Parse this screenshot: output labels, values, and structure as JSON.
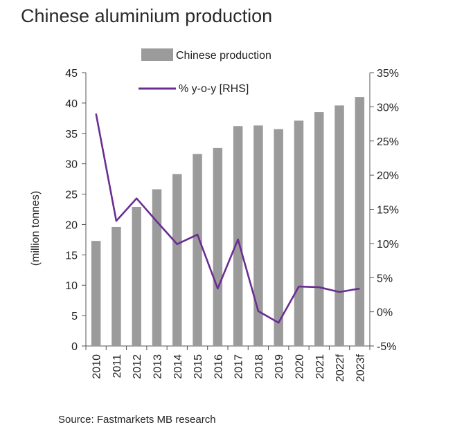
{
  "chart_data": {
    "type": "bar",
    "title": "Chinese aluminium production",
    "ylabel": "(million tonnes)",
    "ylabel_right": "",
    "source": "Source: Fastmarkets MB research",
    "categories": [
      "2010",
      "2011",
      "2012",
      "2013",
      "2014",
      "2015",
      "2016",
      "2017",
      "2018",
      "2019",
      "2020",
      "2021",
      "2022f",
      "2023f"
    ],
    "y_ticks": [
      0,
      5,
      10,
      15,
      20,
      25,
      30,
      35,
      40,
      45
    ],
    "y_tick_labels": [
      "0",
      "5",
      "10",
      "15",
      "20",
      "25",
      "30",
      "35",
      "40",
      "45"
    ],
    "y2_ticks": [
      -5,
      0,
      5,
      10,
      15,
      20,
      25,
      30,
      35
    ],
    "y2_tick_labels": [
      "-5%",
      "0%",
      "5%",
      "10%",
      "15%",
      "20%",
      "25%",
      "30%",
      "35%"
    ],
    "ylim": [
      0,
      45
    ],
    "y2lim": [
      -5,
      35
    ],
    "series": [
      {
        "name": "Chinese production",
        "type": "bar",
        "axis": "left",
        "color": "#9b9b9b",
        "values": [
          17.3,
          19.6,
          22.9,
          25.8,
          28.3,
          31.6,
          32.6,
          36.2,
          36.3,
          35.7,
          37.1,
          38.5,
          39.6,
          41.0
        ]
      },
      {
        "name": "% y-o-y [RHS]",
        "type": "line",
        "axis": "right",
        "color": "#6a2d91",
        "values": [
          29.0,
          13.3,
          16.6,
          13.2,
          9.9,
          11.3,
          3.4,
          10.6,
          0.1,
          -1.6,
          3.7,
          3.6,
          2.9,
          3.4
        ]
      }
    ],
    "legend": "top-center",
    "grid": false
  }
}
